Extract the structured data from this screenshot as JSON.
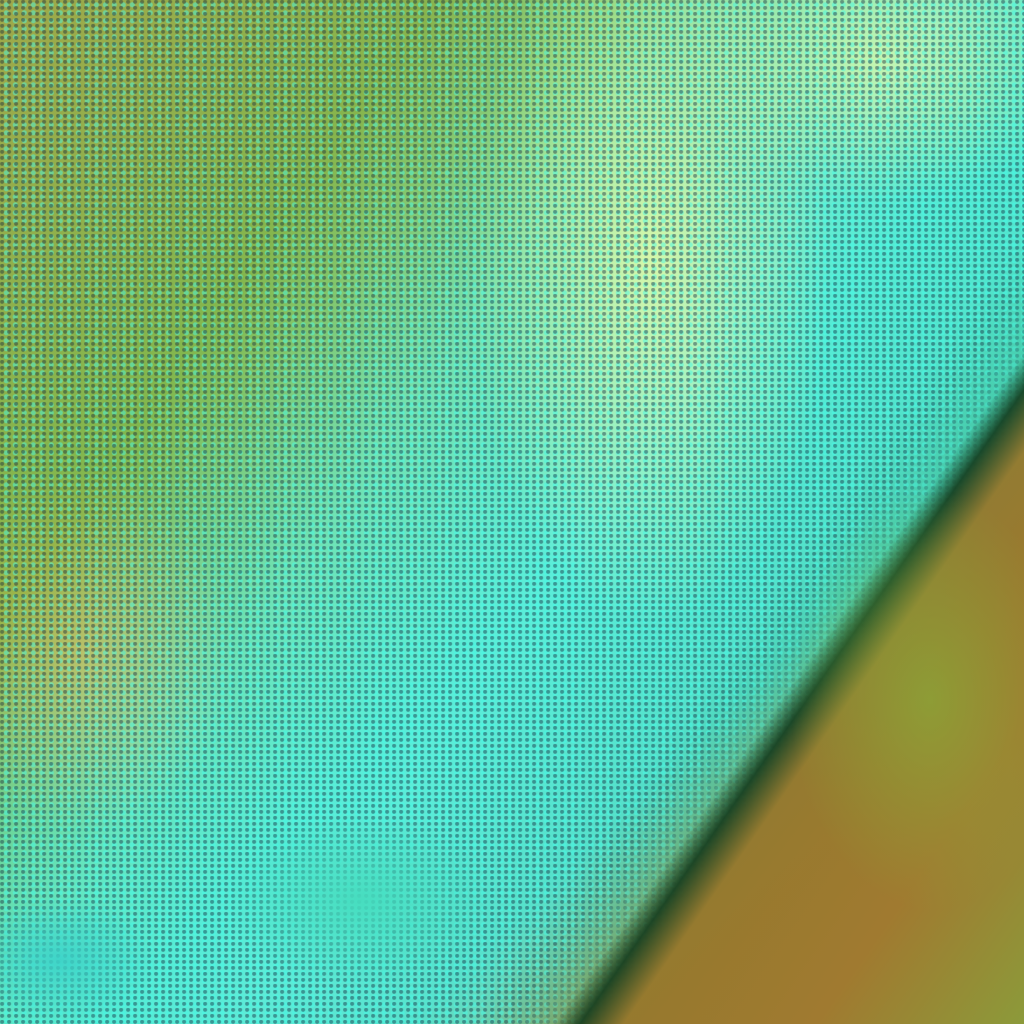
{
  "image": {
    "kind": "false-color satellite imagery",
    "colors": {
      "cloud_cyan": "#46e6d0",
      "vegetation_green": "#7fb84e",
      "bright_yellow_green": "#d6ee5a",
      "land_brown": "#a07a30",
      "dark_shadow": "#14283c"
    }
  }
}
